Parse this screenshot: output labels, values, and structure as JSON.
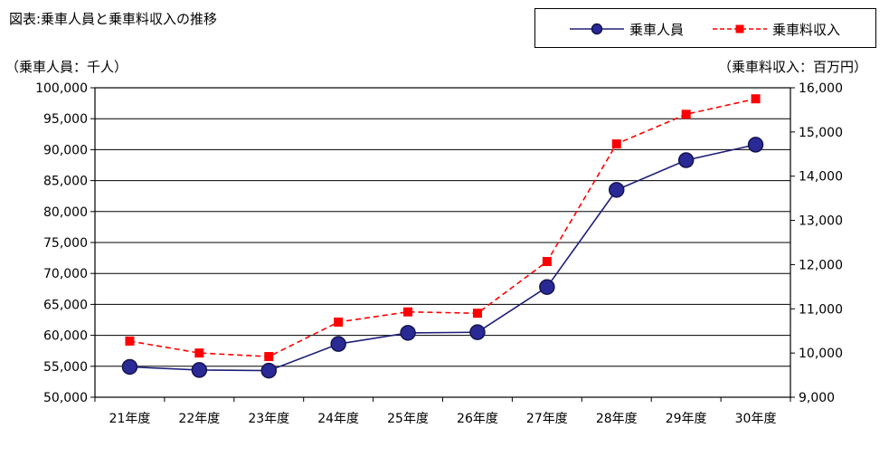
{
  "title": "図表:乗車人員と乗車料収入の推移",
  "legend": {
    "placement": "top-right",
    "items": [
      {
        "label": "乗車人員",
        "icon": "circle-marker-icon",
        "color": "#1e1e7a"
      },
      {
        "label": "乗車料収入",
        "icon": "square-marker-icon",
        "color": "#ff0000"
      }
    ]
  },
  "left_axis_unit": "（乗車人員：千人）",
  "right_axis_unit": "（乗車料収入：百万円）",
  "chart_data": {
    "type": "line",
    "categories": [
      "21年度",
      "22年度",
      "23年度",
      "24年度",
      "25年度",
      "26年度",
      "27年度",
      "28年度",
      "29年度",
      "30年度"
    ],
    "series": [
      {
        "name": "乗車人員",
        "axis": "left",
        "style": "solid",
        "marker": "circle",
        "color": "#1e1e7a",
        "values": [
          54900,
          54400,
          54300,
          58600,
          60400,
          60500,
          67800,
          83500,
          88300,
          90800
        ]
      },
      {
        "name": "乗車料収入",
        "axis": "right",
        "style": "dashed",
        "marker": "square",
        "color": "#ff0000",
        "values": [
          10270,
          10000,
          9920,
          10700,
          10930,
          10900,
          12070,
          14730,
          15400,
          15750
        ]
      }
    ],
    "ylim_left": [
      50000,
      100000
    ],
    "yticks_left": [
      "50,000",
      "55,000",
      "60,000",
      "65,000",
      "70,000",
      "75,000",
      "80,000",
      "85,000",
      "90,000",
      "95,000",
      "100,000"
    ],
    "ylim_right": [
      9000,
      16000
    ],
    "yticks_right": [
      "9,000",
      "10,000",
      "11,000",
      "12,000",
      "13,000",
      "14,000",
      "15,000",
      "16,000"
    ],
    "grid": true
  }
}
